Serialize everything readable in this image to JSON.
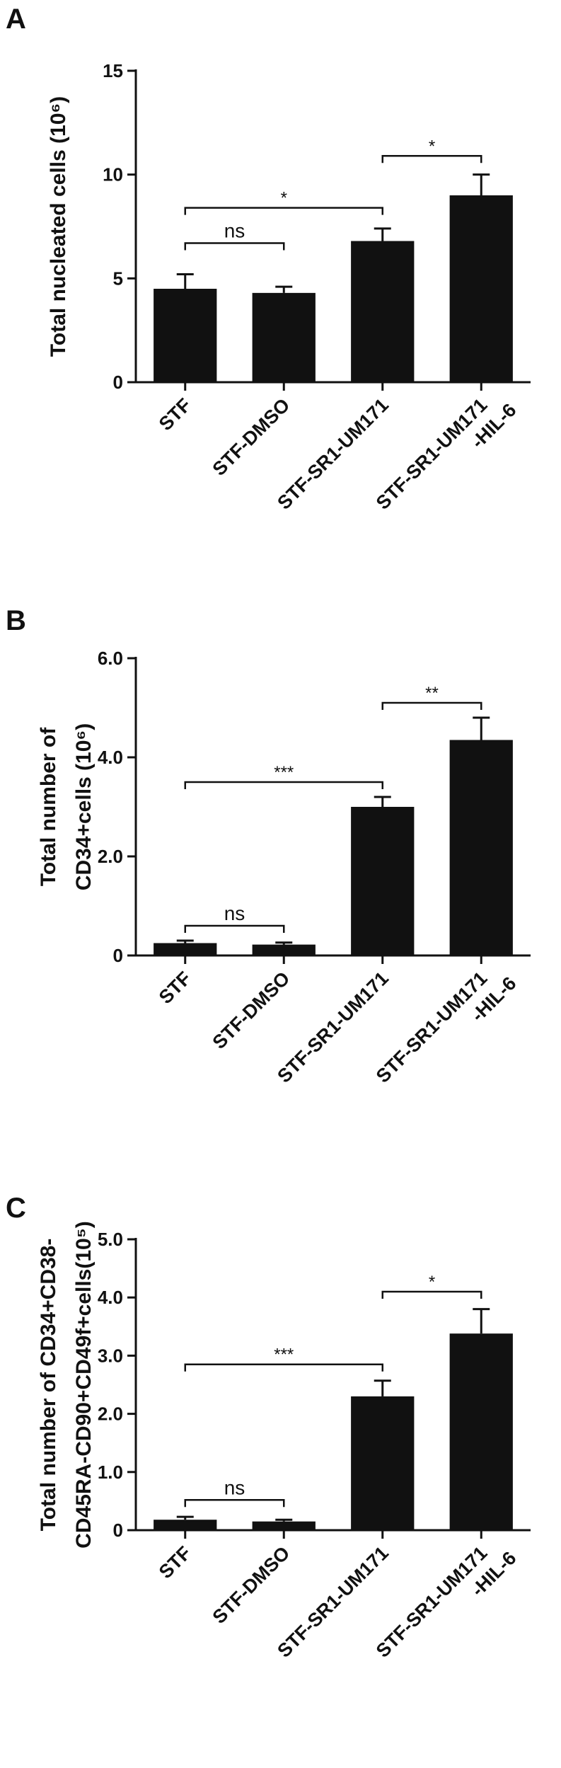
{
  "chart_data": [
    {
      "panel_label": "A",
      "type": "bar",
      "categories": [
        "STF",
        "STF-DMSO",
        "STF-SR1-UM171",
        "STF-SR1-UM171\n-HIL-6"
      ],
      "values": [
        4.5,
        4.3,
        6.8,
        9.0
      ],
      "errors": [
        0.7,
        0.3,
        0.6,
        1.0
      ],
      "ylabel": "Total nucleated cells (10⁶)",
      "ylim": [
        0,
        15
      ],
      "yticks": [
        0,
        5,
        10,
        15
      ],
      "ytick_labels": [
        "0",
        "5",
        "10",
        "15"
      ],
      "significance": [
        {
          "from": 0,
          "to": 1,
          "label": "ns",
          "level": 6.7
        },
        {
          "from": 0,
          "to": 2,
          "label": "*",
          "level": 8.4
        },
        {
          "from": 2,
          "to": 3,
          "label": "*",
          "level": 10.9
        }
      ],
      "colors": {
        "bar": "#111111"
      }
    },
    {
      "panel_label": "B",
      "type": "bar",
      "categories": [
        "STF",
        "STF-DMSO",
        "STF-SR1-UM171",
        "STF-SR1-UM171\n-HIL-6"
      ],
      "values": [
        0.25,
        0.22,
        3.0,
        4.35
      ],
      "errors": [
        0.05,
        0.04,
        0.2,
        0.45
      ],
      "ylabel": "Total number of\nCD34+cells (10⁶)",
      "ylim": [
        0,
        6
      ],
      "yticks": [
        0,
        2,
        4,
        6
      ],
      "ytick_labels": [
        "0",
        "2.0",
        "4.0",
        "6.0"
      ],
      "significance": [
        {
          "from": 0,
          "to": 1,
          "label": "ns",
          "level": 0.6
        },
        {
          "from": 0,
          "to": 2,
          "label": "***",
          "level": 3.5
        },
        {
          "from": 2,
          "to": 3,
          "label": "**",
          "level": 5.1
        }
      ],
      "colors": {
        "bar": "#111111"
      }
    },
    {
      "panel_label": "C",
      "type": "bar",
      "categories": [
        "STF",
        "STF-DMSO",
        "STF-SR1-UM171",
        "STF-SR1-UM171\n-HIL-6"
      ],
      "values": [
        0.18,
        0.15,
        2.3,
        3.38
      ],
      "errors": [
        0.05,
        0.03,
        0.27,
        0.42
      ],
      "ylabel": "Total number of CD34+CD38-\nCD45RA-CD90+CD49f+cells(10⁵)",
      "ylim": [
        0,
        5
      ],
      "yticks": [
        0,
        1,
        2,
        3,
        4,
        5
      ],
      "ytick_labels": [
        "0",
        "1.0",
        "2.0",
        "3.0",
        "4.0",
        "5.0"
      ],
      "significance": [
        {
          "from": 0,
          "to": 1,
          "label": "ns",
          "level": 0.52
        },
        {
          "from": 0,
          "to": 2,
          "label": "***",
          "level": 2.85
        },
        {
          "from": 2,
          "to": 3,
          "label": "*",
          "level": 4.1
        }
      ],
      "colors": {
        "bar": "#111111"
      }
    }
  ]
}
